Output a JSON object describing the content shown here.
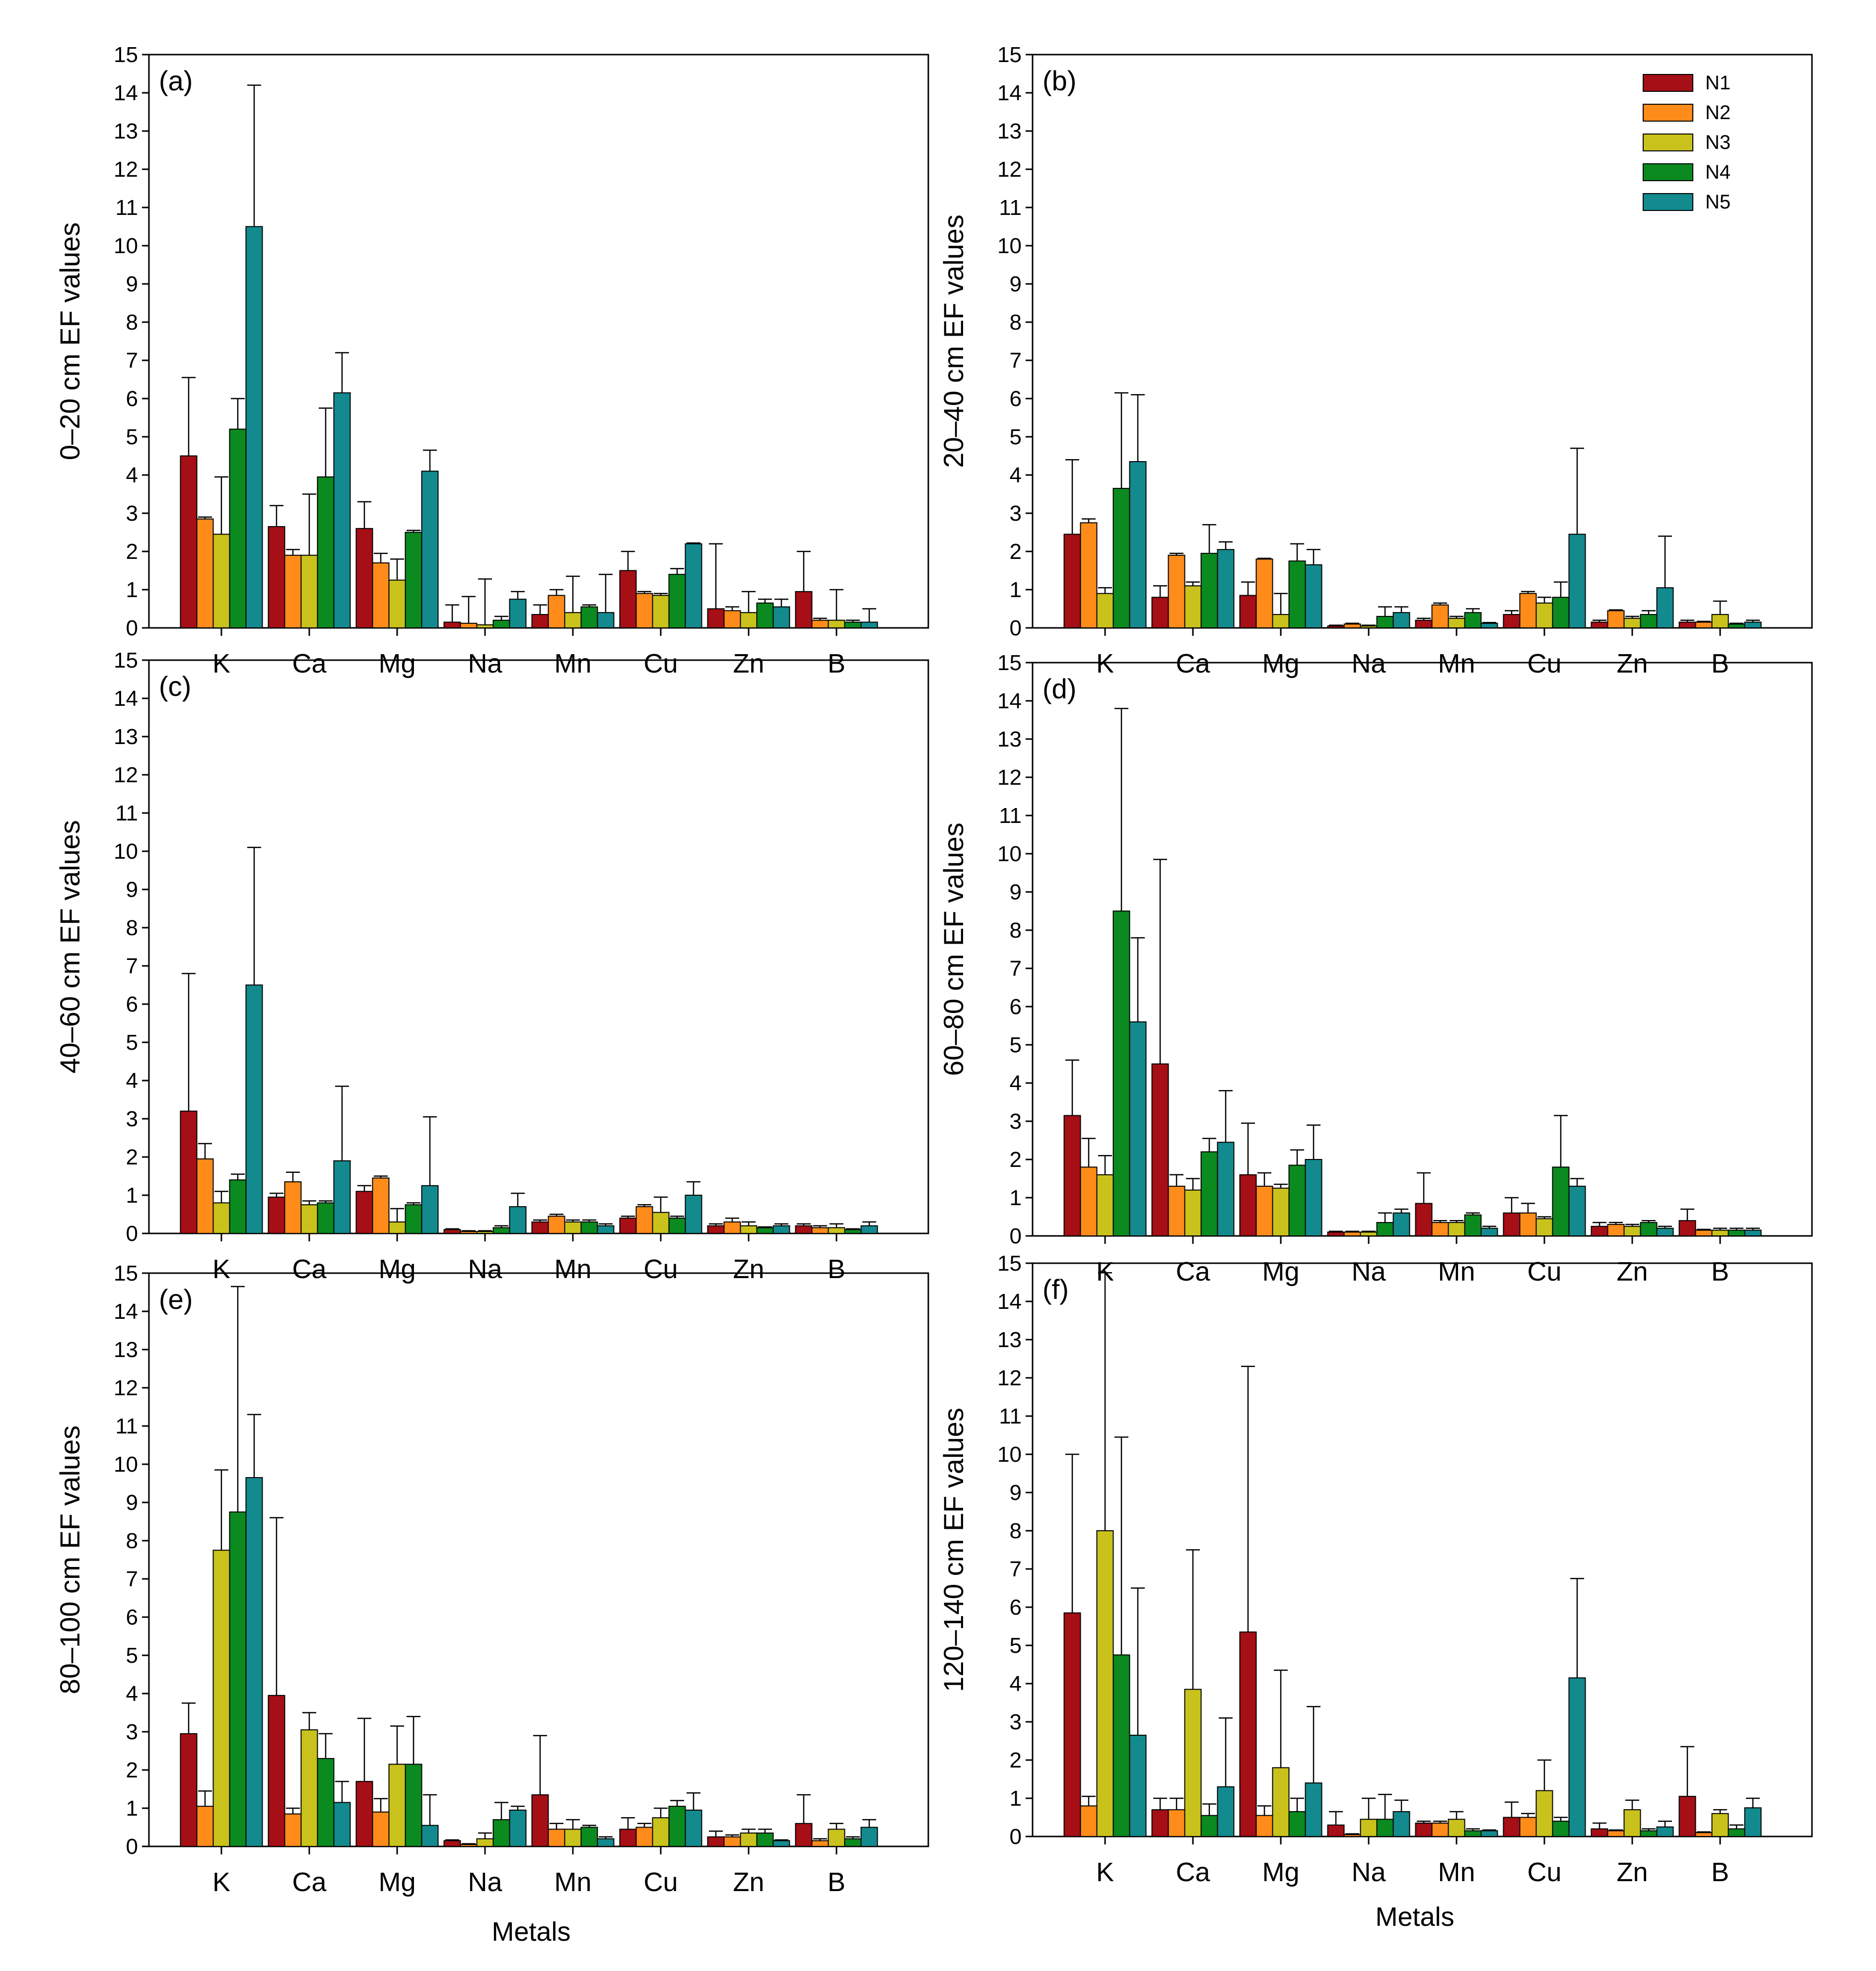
{
  "colors": {
    "N1": "#a50f15",
    "N2": "#ff8c1a",
    "N3": "#c9c21d",
    "N4": "#0b8a1f",
    "N5": "#138a8e"
  },
  "series_names": [
    "N1",
    "N2",
    "N3",
    "N4",
    "N5"
  ],
  "x_title": "Metals",
  "chart_data": [
    {
      "type": "bar",
      "label": "(a)",
      "ylabel": "0–20 cm EF values",
      "ylim": [
        0,
        15
      ],
      "yticks": [
        "0",
        "1",
        "2",
        "3",
        "4",
        "5",
        "6",
        "7",
        "8",
        "9",
        "10",
        "11",
        "12",
        "13",
        "14",
        "15"
      ],
      "categories": [
        "K",
        "Ca",
        "Mg",
        "Na",
        "Mn",
        "Cu",
        "Zn",
        "B"
      ],
      "series": [
        {
          "name": "N1",
          "values": [
            4.5,
            2.65,
            2.6,
            0.15,
            0.35,
            1.5,
            0.5,
            0.95
          ],
          "errors": [
            2.05,
            0.55,
            0.7,
            0.45,
            0.25,
            0.5,
            1.7,
            1.05
          ]
        },
        {
          "name": "N2",
          "values": [
            2.85,
            1.9,
            1.7,
            0.12,
            0.85,
            0.9,
            0.45,
            0.2
          ],
          "errors": [
            0.05,
            0.15,
            0.25,
            0.7,
            0.15,
            0.05,
            0.1,
            0.05
          ]
        },
        {
          "name": "N3",
          "values": [
            2.45,
            1.9,
            1.25,
            0.08,
            0.4,
            0.85,
            0.4,
            0.2
          ],
          "errors": [
            1.5,
            1.6,
            0.55,
            1.2,
            0.95,
            0.05,
            0.55,
            0.8
          ]
        },
        {
          "name": "N4",
          "values": [
            5.2,
            3.95,
            2.5,
            0.2,
            0.55,
            1.4,
            0.65,
            0.15
          ],
          "errors": [
            0.8,
            1.8,
            0.05,
            0.1,
            0.05,
            0.15,
            0.1,
            0.05
          ]
        },
        {
          "name": "N5",
          "values": [
            10.5,
            6.15,
            4.1,
            0.75,
            0.4,
            2.2,
            0.55,
            0.15
          ],
          "errors": [
            3.7,
            1.05,
            0.55,
            0.2,
            1.0,
            0.02,
            0.2,
            0.35
          ]
        }
      ]
    },
    {
      "type": "bar",
      "label": "(b)",
      "ylabel": "20–40 cm EF values",
      "ylim": [
        0,
        15
      ],
      "yticks": [
        "0",
        "1",
        "2",
        "3",
        "4",
        "5",
        "6",
        "7",
        "8",
        "9",
        "10",
        "11",
        "12",
        "13",
        "14",
        "15"
      ],
      "categories": [
        "K",
        "Ca",
        "Mg",
        "Na",
        "Mn",
        "Cu",
        "Zn",
        "B"
      ],
      "legend": {
        "position": "top-right",
        "entries": [
          "N1",
          "N2",
          "N3",
          "N4",
          "N5"
        ]
      },
      "series": [
        {
          "name": "N1",
          "values": [
            2.45,
            0.8,
            0.85,
            0.05,
            0.2,
            0.35,
            0.15,
            0.15
          ],
          "errors": [
            1.95,
            0.3,
            0.35,
            0.02,
            0.05,
            0.1,
            0.05,
            0.05
          ]
        },
        {
          "name": "N2",
          "values": [
            2.75,
            1.9,
            1.8,
            0.1,
            0.6,
            0.9,
            0.45,
            0.15
          ],
          "errors": [
            0.1,
            0.05,
            0.02,
            0.02,
            0.05,
            0.05,
            0.02,
            0.02
          ]
        },
        {
          "name": "N3",
          "values": [
            0.9,
            1.1,
            0.35,
            0.05,
            0.25,
            0.65,
            0.25,
            0.35
          ],
          "errors": [
            0.15,
            0.1,
            0.55,
            0.02,
            0.05,
            0.15,
            0.05,
            0.35
          ]
        },
        {
          "name": "N4",
          "values": [
            3.65,
            1.95,
            1.75,
            0.3,
            0.4,
            0.8,
            0.35,
            0.1
          ],
          "errors": [
            2.5,
            0.75,
            0.45,
            0.25,
            0.1,
            0.4,
            0.1,
            0.02
          ]
        },
        {
          "name": "N5",
          "values": [
            4.35,
            2.05,
            1.65,
            0.4,
            0.12,
            2.45,
            1.05,
            0.15
          ],
          "errors": [
            1.75,
            0.2,
            0.4,
            0.15,
            0.02,
            2.25,
            1.35,
            0.05
          ]
        }
      ]
    },
    {
      "type": "bar",
      "label": "(c)",
      "ylabel": "40–60 cm EF values",
      "ylim": [
        0,
        15
      ],
      "yticks": [
        "0",
        "1",
        "2",
        "3",
        "4",
        "5",
        "6",
        "7",
        "8",
        "9",
        "10",
        "11",
        "12",
        "13",
        "14",
        "15"
      ],
      "categories": [
        "K",
        "Ca",
        "Mg",
        "Na",
        "Mn",
        "Cu",
        "Zn",
        "B"
      ],
      "series": [
        {
          "name": "N1",
          "values": [
            3.2,
            0.95,
            1.1,
            0.1,
            0.3,
            0.4,
            0.2,
            0.2
          ],
          "errors": [
            3.6,
            0.1,
            0.15,
            0.02,
            0.05,
            0.05,
            0.05,
            0.05
          ]
        },
        {
          "name": "N2",
          "values": [
            1.95,
            1.35,
            1.45,
            0.05,
            0.45,
            0.7,
            0.3,
            0.15
          ],
          "errors": [
            0.4,
            0.25,
            0.05,
            0.02,
            0.05,
            0.05,
            0.1,
            0.05
          ]
        },
        {
          "name": "N3",
          "values": [
            0.8,
            0.75,
            0.3,
            0.05,
            0.3,
            0.55,
            0.2,
            0.15
          ],
          "errors": [
            0.3,
            0.1,
            0.35,
            0.02,
            0.05,
            0.4,
            0.1,
            0.1
          ]
        },
        {
          "name": "N4",
          "values": [
            1.4,
            0.8,
            0.75,
            0.15,
            0.3,
            0.4,
            0.15,
            0.1
          ],
          "errors": [
            0.15,
            0.05,
            0.05,
            0.05,
            0.05,
            0.05,
            0.02,
            0.02
          ]
        },
        {
          "name": "N5",
          "values": [
            6.5,
            1.9,
            1.25,
            0.7,
            0.2,
            1.0,
            0.2,
            0.2
          ],
          "errors": [
            3.6,
            1.95,
            1.8,
            0.35,
            0.05,
            0.35,
            0.05,
            0.1
          ]
        }
      ]
    },
    {
      "type": "bar",
      "label": "(d)",
      "ylabel": "60–80 cm EF values",
      "ylim": [
        0,
        15
      ],
      "yticks": [
        "0",
        "1",
        "2",
        "3",
        "4",
        "5",
        "6",
        "7",
        "8",
        "9",
        "10",
        "11",
        "12",
        "13",
        "14",
        "15"
      ],
      "categories": [
        "K",
        "Ca",
        "Mg",
        "Na",
        "Mn",
        "Cu",
        "Zn",
        "B"
      ],
      "series": [
        {
          "name": "N1",
          "values": [
            3.15,
            4.5,
            1.6,
            0.1,
            0.85,
            0.6,
            0.25,
            0.4
          ],
          "errors": [
            1.45,
            5.35,
            1.35,
            0.02,
            0.8,
            0.4,
            0.1,
            0.3
          ]
        },
        {
          "name": "N2",
          "values": [
            1.8,
            1.3,
            1.3,
            0.1,
            0.35,
            0.6,
            0.3,
            0.15
          ],
          "errors": [
            0.75,
            0.3,
            0.35,
            0.02,
            0.05,
            0.25,
            0.05,
            0.02
          ]
        },
        {
          "name": "N3",
          "values": [
            1.6,
            1.2,
            1.25,
            0.1,
            0.35,
            0.45,
            0.25,
            0.15
          ],
          "errors": [
            0.5,
            0.3,
            0.1,
            0.02,
            0.05,
            0.05,
            0.05,
            0.05
          ]
        },
        {
          "name": "N4",
          "values": [
            8.5,
            2.2,
            1.85,
            0.35,
            0.55,
            1.8,
            0.35,
            0.15
          ],
          "errors": [
            5.3,
            0.35,
            0.4,
            0.25,
            0.05,
            1.35,
            0.05,
            0.05
          ]
        },
        {
          "name": "N5",
          "values": [
            5.6,
            2.45,
            2.0,
            0.6,
            0.2,
            1.3,
            0.2,
            0.15
          ],
          "errors": [
            2.2,
            1.35,
            0.9,
            0.1,
            0.05,
            0.2,
            0.05,
            0.05
          ]
        }
      ]
    },
    {
      "type": "bar",
      "label": "(e)",
      "ylabel": "80–100 cm EF values",
      "ylim": [
        0,
        15
      ],
      "yticks": [
        "0",
        "1",
        "2",
        "3",
        "4",
        "5",
        "6",
        "7",
        "8",
        "9",
        "10",
        "11",
        "12",
        "13",
        "14",
        "15"
      ],
      "categories": [
        "K",
        "Ca",
        "Mg",
        "Na",
        "Mn",
        "Cu",
        "Zn",
        "B"
      ],
      "series": [
        {
          "name": "N1",
          "values": [
            2.95,
            3.95,
            1.7,
            0.15,
            1.35,
            0.45,
            0.25,
            0.6
          ],
          "errors": [
            0.8,
            4.65,
            1.65,
            0.02,
            1.55,
            0.3,
            0.15,
            0.75
          ]
        },
        {
          "name": "N2",
          "values": [
            1.05,
            0.85,
            0.9,
            0.05,
            0.45,
            0.5,
            0.25,
            0.15
          ],
          "errors": [
            0.4,
            0.15,
            0.35,
            0.02,
            0.15,
            0.1,
            0.05,
            0.05
          ]
        },
        {
          "name": "N3",
          "values": [
            7.75,
            3.05,
            2.15,
            0.2,
            0.45,
            0.75,
            0.35,
            0.45
          ],
          "errors": [
            2.1,
            0.45,
            1.0,
            0.15,
            0.25,
            0.25,
            0.1,
            0.15
          ]
        },
        {
          "name": "N4",
          "values": [
            8.75,
            2.3,
            2.15,
            0.7,
            0.5,
            1.05,
            0.35,
            0.2
          ],
          "errors": [
            5.9,
            0.65,
            1.25,
            0.45,
            0.05,
            0.15,
            0.1,
            0.05
          ]
        },
        {
          "name": "N5",
          "values": [
            9.65,
            1.15,
            0.55,
            0.95,
            0.2,
            0.95,
            0.15,
            0.5
          ],
          "errors": [
            1.65,
            0.55,
            0.8,
            0.1,
            0.05,
            0.45,
            0.02,
            0.2
          ]
        }
      ]
    },
    {
      "type": "bar",
      "label": "(f)",
      "ylabel": "120–140 cm EF values",
      "ylim": [
        0,
        15
      ],
      "yticks": [
        "0",
        "1",
        "2",
        "3",
        "4",
        "5",
        "6",
        "7",
        "8",
        "9",
        "10",
        "11",
        "12",
        "13",
        "14",
        "15"
      ],
      "categories": [
        "K",
        "Ca",
        "Mg",
        "Na",
        "Mn",
        "Cu",
        "Zn",
        "B"
      ],
      "series": [
        {
          "name": "N1",
          "values": [
            5.85,
            0.7,
            5.35,
            0.3,
            0.35,
            0.5,
            0.2,
            1.05
          ],
          "errors": [
            4.15,
            0.3,
            6.95,
            0.35,
            0.05,
            0.4,
            0.15,
            1.3
          ]
        },
        {
          "name": "N2",
          "values": [
            0.8,
            0.7,
            0.55,
            0.05,
            0.35,
            0.5,
            0.15,
            0.1
          ],
          "errors": [
            0.25,
            0.3,
            0.25,
            0.02,
            0.05,
            0.1,
            0.02,
            0.02
          ]
        },
        {
          "name": "N3",
          "values": [
            8.0,
            3.85,
            1.8,
            0.45,
            0.45,
            1.2,
            0.7,
            0.6
          ],
          "errors": [
            6.75,
            3.65,
            2.55,
            0.55,
            0.2,
            0.8,
            0.25,
            0.1
          ]
        },
        {
          "name": "N4",
          "values": [
            4.75,
            0.55,
            0.65,
            0.45,
            0.15,
            0.4,
            0.15,
            0.2
          ],
          "errors": [
            5.7,
            0.3,
            0.35,
            0.65,
            0.05,
            0.1,
            0.05,
            0.1
          ]
        },
        {
          "name": "N5",
          "values": [
            2.65,
            1.3,
            1.4,
            0.65,
            0.15,
            4.15,
            0.25,
            0.75
          ],
          "errors": [
            3.85,
            1.8,
            2.0,
            0.3,
            0.02,
            2.6,
            0.15,
            0.25
          ]
        }
      ]
    }
  ]
}
